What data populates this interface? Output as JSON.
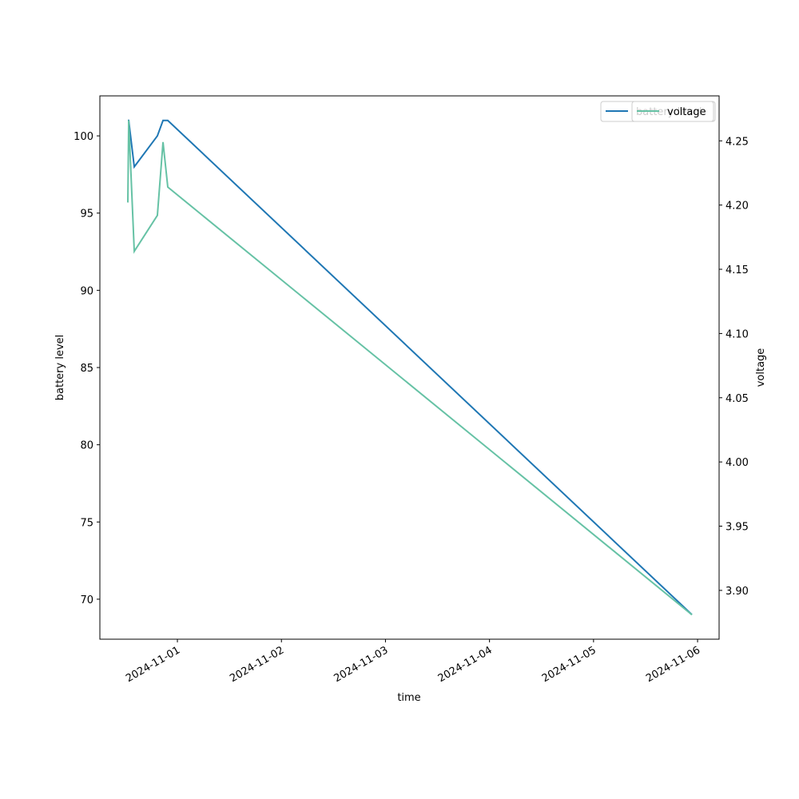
{
  "chart_data": {
    "type": "line",
    "x": [
      "2024-10-31T12:34",
      "2024-10-31T12:46",
      "2024-10-31T14:03",
      "2024-10-31T19:23",
      "2024-10-31T20:41",
      "2024-10-31T21:47",
      "2024-11-05T22:42"
    ],
    "xlabel": "time",
    "ylabel": "battery level",
    "y2label": "voltage",
    "xlim": [
      "2024-10-31T06:07",
      "2024-11-06T04:58"
    ],
    "xticks": [
      "2024-11-01",
      "2024-11-02",
      "2024-11-03",
      "2024-11-04",
      "2024-11-05",
      "2024-11-06"
    ],
    "ylim": [
      67.41,
      102.59
    ],
    "yticks": [
      70,
      75,
      80,
      85,
      90,
      95,
      100
    ],
    "y2lim": [
      3.862,
      4.285
    ],
    "y2ticks": [
      {
        "value": 3.9,
        "label": "3.90"
      },
      {
        "value": 3.95,
        "label": "3.95"
      },
      {
        "value": 4.0,
        "label": "4.00"
      },
      {
        "value": 4.05,
        "label": "4.05"
      },
      {
        "value": 4.1,
        "label": "4.10"
      },
      {
        "value": 4.15,
        "label": "4.15"
      },
      {
        "value": 4.2,
        "label": "4.20"
      },
      {
        "value": 4.25,
        "label": "4.25"
      }
    ],
    "legend": "upper right",
    "series": [
      {
        "name": "battery level",
        "color": "#1f77b4",
        "values": [
          101,
          101,
          98,
          100,
          101,
          101,
          69
        ]
      },
      {
        "name": "voltage",
        "color": "#66c2a5",
        "axis": "y2",
        "values": [
          4.202,
          4.266,
          4.164,
          4.192,
          4.249,
          4.214,
          3.881
        ]
      }
    ]
  }
}
